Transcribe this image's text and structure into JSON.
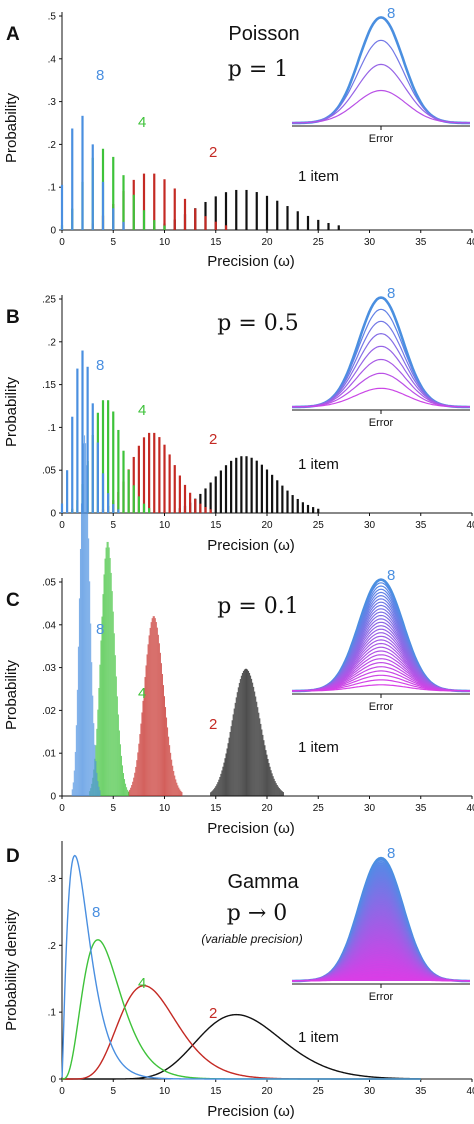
{
  "colors": {
    "8": "#4a8fe0",
    "4": "#3ec23a",
    "2": "#c42a24",
    "1": "#111111",
    "inset_outer": "#4a8fe0",
    "inset_inner": "#c040e0",
    "inset_mid": "#5040b0"
  },
  "panels": [
    {
      "letter": "A",
      "ylabel": "Probability",
      "xlabel": "Precision (ω)",
      "title_word": "Poisson",
      "p_text": "p = 1",
      "sub_text": "",
      "yticks": [
        "0",
        ".1",
        ".2",
        ".3",
        ".4",
        ".5"
      ],
      "xticks": [
        "0",
        "5",
        "10",
        "15",
        "20",
        "25",
        "30",
        "35",
        "40"
      ],
      "labels": {
        "s8": "8",
        "s4": "4",
        "s2": "2",
        "s1": "1 item"
      },
      "inset_label": "Error",
      "inset_top": "8"
    },
    {
      "letter": "B",
      "ylabel": "Probability",
      "xlabel": "Precision (ω)",
      "title_word": "",
      "p_text": "p = 0.5",
      "sub_text": "",
      "yticks": [
        "0",
        ".05",
        ".1",
        ".15",
        ".2",
        ".25"
      ],
      "xticks": [
        "0",
        "5",
        "10",
        "15",
        "20",
        "25",
        "30",
        "35",
        "40"
      ],
      "labels": {
        "s8": "8",
        "s4": "4",
        "s2": "2",
        "s1": "1 item"
      },
      "inset_label": "Error",
      "inset_top": "8"
    },
    {
      "letter": "C",
      "ylabel": "Probability",
      "xlabel": "Precision (ω)",
      "title_word": "",
      "p_text": "p = 0.1",
      "sub_text": "",
      "yticks": [
        "0",
        ".01",
        ".02",
        ".03",
        ".04",
        ".05"
      ],
      "xticks": [
        "0",
        "5",
        "10",
        "15",
        "20",
        "25",
        "30",
        "35",
        "40"
      ],
      "labels": {
        "s8": "8",
        "s4": "4",
        "s2": "2",
        "s1": "1 item"
      },
      "inset_label": "Error",
      "inset_top": "8"
    },
    {
      "letter": "D",
      "ylabel": "Probability density",
      "xlabel": "Precision (ω)",
      "title_word": "Gamma",
      "p_text": "p → 0",
      "sub_text": "(variable precision)",
      "yticks": [
        "0",
        ".1",
        ".2",
        ".3"
      ],
      "xticks": [
        "0",
        "5",
        "10",
        "15",
        "20",
        "25",
        "30",
        "35",
        "40"
      ],
      "labels": {
        "s8": "8",
        "s4": "4",
        "s2": "2",
        "s1": "1 item"
      },
      "inset_label": "Error",
      "inset_top": "8"
    }
  ],
  "chart_data": [
    {
      "type": "bar",
      "panel": "A",
      "xlim": [
        0,
        40
      ],
      "ylim": [
        0,
        0.5
      ],
      "model": "Poisson precision distributions, mean precision J/N (J=18), precision step 1/p",
      "step": 1.0,
      "lambda": {
        "8": 2.25,
        "4": 4.5,
        "2": 9,
        "1": 18
      }
    },
    {
      "type": "bar",
      "panel": "B",
      "xlim": [
        0,
        40
      ],
      "ylim": [
        0,
        0.25
      ],
      "step": 0.5,
      "lambda": {
        "8": 2.25,
        "4": 4.5,
        "2": 9,
        "1": 18
      }
    },
    {
      "type": "bar",
      "panel": "C",
      "xlim": [
        0,
        40
      ],
      "ylim": [
        0,
        0.05
      ],
      "step": 0.1,
      "lambda": {
        "8": 2.25,
        "4": 4.5,
        "2": 9,
        "1": 18
      }
    },
    {
      "type": "line",
      "panel": "D",
      "xlim": [
        0,
        40
      ],
      "ylim": [
        0,
        0.35
      ],
      "model": "Gamma density with scale 1 and mean precision",
      "shape": {
        "8": 2.25,
        "4": 4.5,
        "2": 9,
        "1": 18
      }
    }
  ]
}
